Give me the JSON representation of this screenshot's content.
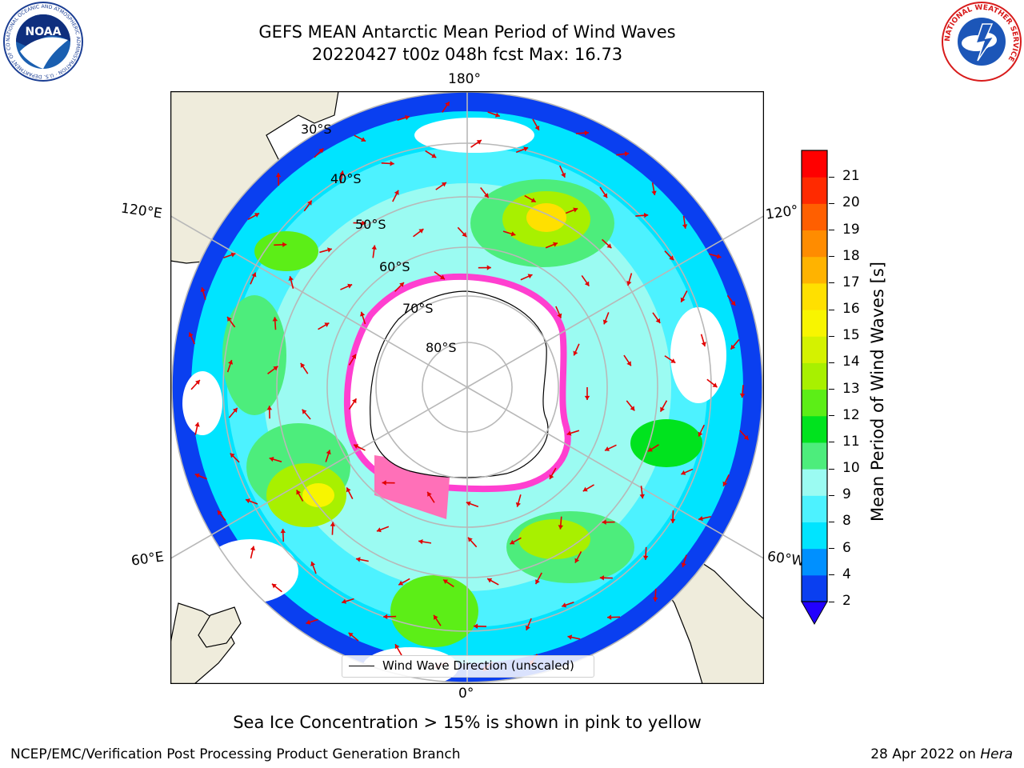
{
  "header": {
    "title_line1": "GEFS MEAN Antarctic Mean Period of Wind Waves",
    "title_line2": "20220427 t00z 048h fcst   Max: 16.73"
  },
  "logos": {
    "left": {
      "name": "NOAA",
      "text": "NOAA",
      "ring_text": "NATIONAL OCEANIC AND ATMOSPHERIC ADMINISTRATION · U.S. DEPARTMENT OF COMMERCE"
    },
    "right": {
      "name": "National Weather Service",
      "ring_text": "NATIONAL WEATHER SERVICE"
    }
  },
  "map": {
    "projection": "south-polar-stereographic",
    "longitude_labels": {
      "top": "180°",
      "left_upper": "120°E",
      "right_upper": "120°",
      "left_lower": "60°E",
      "right_lower": "60°W",
      "bottom": "0°"
    },
    "latitude_labels": [
      "30°S",
      "40°S",
      "50°S",
      "60°S",
      "70°S",
      "80°S"
    ],
    "legend": "Wind Wave Direction (unscaled)",
    "colors": {
      "land": "#efecdc",
      "ocean_no_data": "#ffffff",
      "sea_ice": "#ff5fc8",
      "grid": "#b8b8b8",
      "arrow": "#e10000"
    }
  },
  "colorbar": {
    "label": "Mean Period of Wind Waves [s]",
    "ticks": [
      "2",
      "4",
      "6",
      "8",
      "9",
      "10",
      "11",
      "12",
      "13",
      "14",
      "15",
      "16",
      "17",
      "18",
      "19",
      "20",
      "21"
    ],
    "bands": [
      "#0a3ff0",
      "#0090ff",
      "#00e4ff",
      "#4df2ff",
      "#9bfbf2",
      "#4ded7c",
      "#00e31e",
      "#5cee17",
      "#a8f000",
      "#d4f200",
      "#f8f500",
      "#ffe000",
      "#ffb300",
      "#ff8c00",
      "#ff5f00",
      "#ff2a00",
      "#ff0000"
    ],
    "extend_color": "#2200ff"
  },
  "caption": "Sea Ice Concentration > 15% is shown in pink to yellow",
  "footer": {
    "left": "NCEP/EMC/Verification Post Processing Product Generation Branch",
    "right_date": "28 Apr 2022 on ",
    "right_host": "Hera"
  }
}
